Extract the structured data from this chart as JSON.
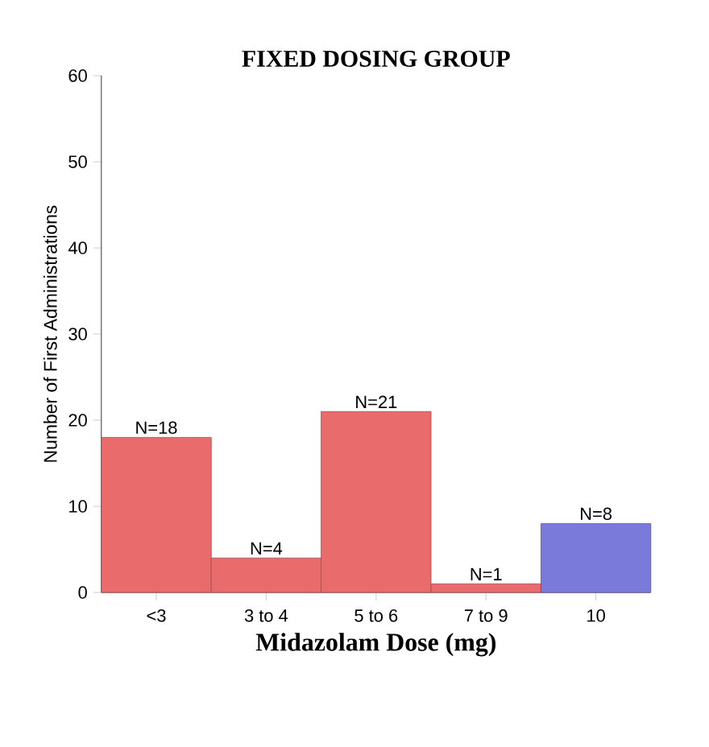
{
  "chart_data": {
    "type": "bar",
    "title": "FIXED DOSING GROUP",
    "xlabel": "Midazolam Dose (mg)",
    "ylabel": "Number of First Administrations",
    "categories": [
      "<3",
      "3 to 4",
      "5 to 6",
      "7 to 9",
      "10"
    ],
    "values": [
      18,
      4,
      21,
      1,
      8
    ],
    "colors": [
      "#e96b6b",
      "#e96b6b",
      "#e96b6b",
      "#e96b6b",
      "#7a7adb"
    ],
    "value_labels": [
      "N=18",
      "N=4",
      "N=21",
      "N=1",
      "N=8"
    ],
    "ylim": [
      0,
      60
    ],
    "yticks": [
      0,
      10,
      20,
      30,
      40,
      50,
      60
    ],
    "grid": false
  }
}
